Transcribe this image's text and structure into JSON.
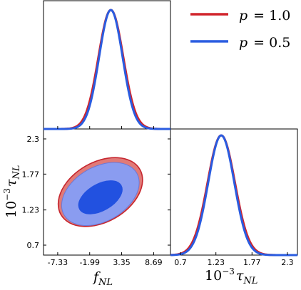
{
  "chart_data": {
    "type": "corner",
    "legend": {
      "placement": "top-right",
      "entries": [
        {
          "name": "p = 1.0",
          "color": "#d1242b"
        },
        {
          "name": "p = 0.5",
          "color": "#2a5ce0"
        }
      ]
    },
    "panels": [
      {
        "id": "fnl_marginal",
        "type": "line",
        "x_param": "f_NL",
        "xlim": [
          -11.5,
          11.5
        ],
        "series": [
          {
            "name": "p = 1.0",
            "color": "#d1242b",
            "mean": 0.7,
            "sigma": 2.25
          },
          {
            "name": "p = 0.5",
            "color": "#2a5ce0",
            "mean": 0.7,
            "sigma": 2.12
          }
        ]
      },
      {
        "id": "fnl_taunl_joint",
        "type": "contour",
        "xlabel": "f_NL",
        "ylabel": "10^-3 τ_NL",
        "xlim": [
          -9.7,
          11.5
        ],
        "ylim": [
          0.55,
          2.45
        ],
        "xticks": [
          "-7.33",
          "-1.99",
          "3.35",
          "8.69"
        ],
        "xtick_values": [
          -7.33,
          -1.99,
          3.35,
          8.69
        ],
        "yticks": [
          "0.7",
          "1.23",
          "1.77",
          "2.3"
        ],
        "ytick_values": [
          0.7,
          1.23,
          1.77,
          2.3
        ],
        "series": [
          {
            "name": "p = 1.0",
            "fill": "#e07a78",
            "edge": "#c6262e",
            "center": [
              -0.2,
              1.5
            ],
            "outer_axes": [
              7.6,
              0.45
            ],
            "angle_deg": -30
          },
          {
            "name": "p = 0.5",
            "fill": "#8a9cf0",
            "edge": "#6a78d8",
            "center": [
              -0.2,
              1.47
            ],
            "outer_axes": [
              7.0,
              0.41
            ],
            "angle_deg": -30
          },
          {
            "name": "p = 0.5 inner",
            "fill": "#2251e0",
            "edge": "#2251e0",
            "center": [
              -0.2,
              1.42
            ],
            "outer_axes": [
              4.0,
              0.2
            ],
            "angle_deg": -30
          }
        ]
      },
      {
        "id": "taunl_marginal",
        "type": "line",
        "xlabel": "10^-3 τ_NL",
        "xlim": [
          0.55,
          2.45
        ],
        "xticks": [
          "0.7",
          "1.23",
          "1.77",
          "2.3"
        ],
        "xtick_values": [
          0.7,
          1.23,
          1.77,
          2.3
        ],
        "series": [
          {
            "name": "p = 1.0",
            "color": "#d1242b",
            "mean": 1.31,
            "sigma": 0.205
          },
          {
            "name": "p = 0.5",
            "color": "#2a5ce0",
            "mean": 1.31,
            "sigma": 0.195
          }
        ]
      }
    ]
  },
  "labels": {
    "x_fnl_base": "f",
    "x_fnl_sub": "NL",
    "x_tau_pre": "10",
    "x_tau_exp": "−3",
    "x_tau_sym": "τ",
    "x_tau_sub": "NL",
    "legend_p": "p",
    "legend_eq1": "= 1.0",
    "legend_eq2": "= 0.5"
  }
}
